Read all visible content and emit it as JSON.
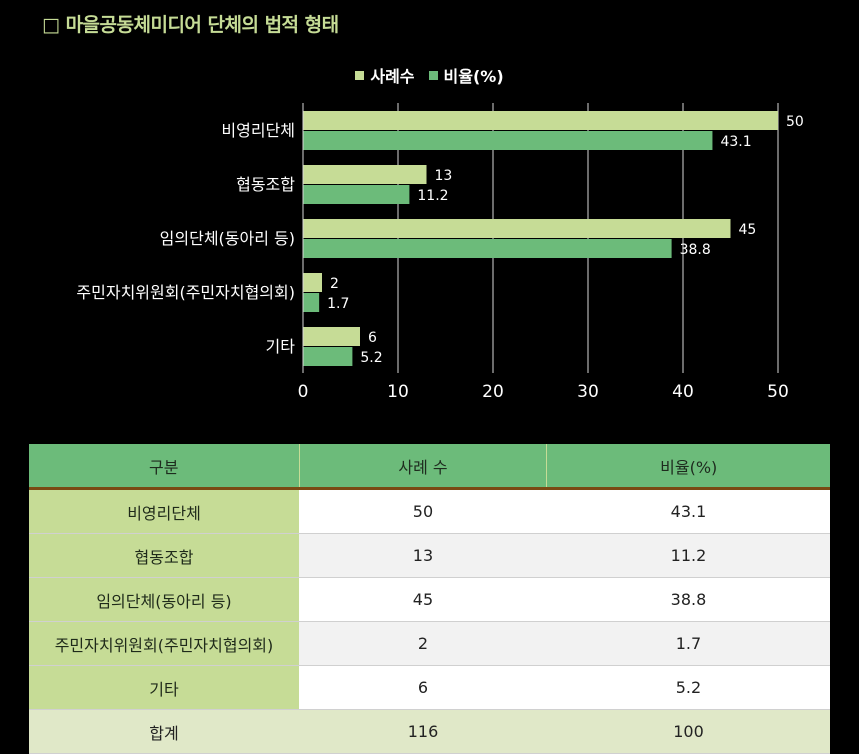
{
  "title": "□ 마을공동체미디어 단체의 법적 형태",
  "legend": {
    "series1": "사례수",
    "series2": "비율(%)"
  },
  "colors": {
    "series1": "#c6dc96",
    "series2": "#6cbb7a",
    "title": "#c6dc96",
    "header_bg": "#6cbb7a",
    "header_border": "#7a4a14",
    "category_bg": "#c6dc96"
  },
  "chart_data": {
    "type": "bar",
    "orientation": "horizontal",
    "categories": [
      "비영리단체",
      "협동조합",
      "임의단체(동아리 등)",
      "주민자치위원회(주민자치협의회)",
      "기타"
    ],
    "series": [
      {
        "name": "사례수",
        "values": [
          50,
          13,
          45,
          2,
          6
        ]
      },
      {
        "name": "비율(%)",
        "values": [
          43.1,
          11.2,
          38.8,
          1.7,
          5.2
        ]
      }
    ],
    "xlim": [
      0,
      50
    ],
    "xticks": [
      0,
      10,
      20,
      30,
      40,
      50
    ],
    "grid": true,
    "legend_position": "top"
  },
  "table": {
    "headers": [
      "구분",
      "사례 수",
      "비율(%)"
    ],
    "rows": [
      [
        "비영리단체",
        "50",
        "43.1"
      ],
      [
        "협동조합",
        "13",
        "11.2"
      ],
      [
        "임의단체(동아리 등)",
        "45",
        "38.8"
      ],
      [
        "주민자치위원회(주민자치협의회)",
        "2",
        "1.7"
      ],
      [
        "기타",
        "6",
        "5.2"
      ]
    ],
    "total": [
      "합계",
      "116",
      "100"
    ]
  }
}
